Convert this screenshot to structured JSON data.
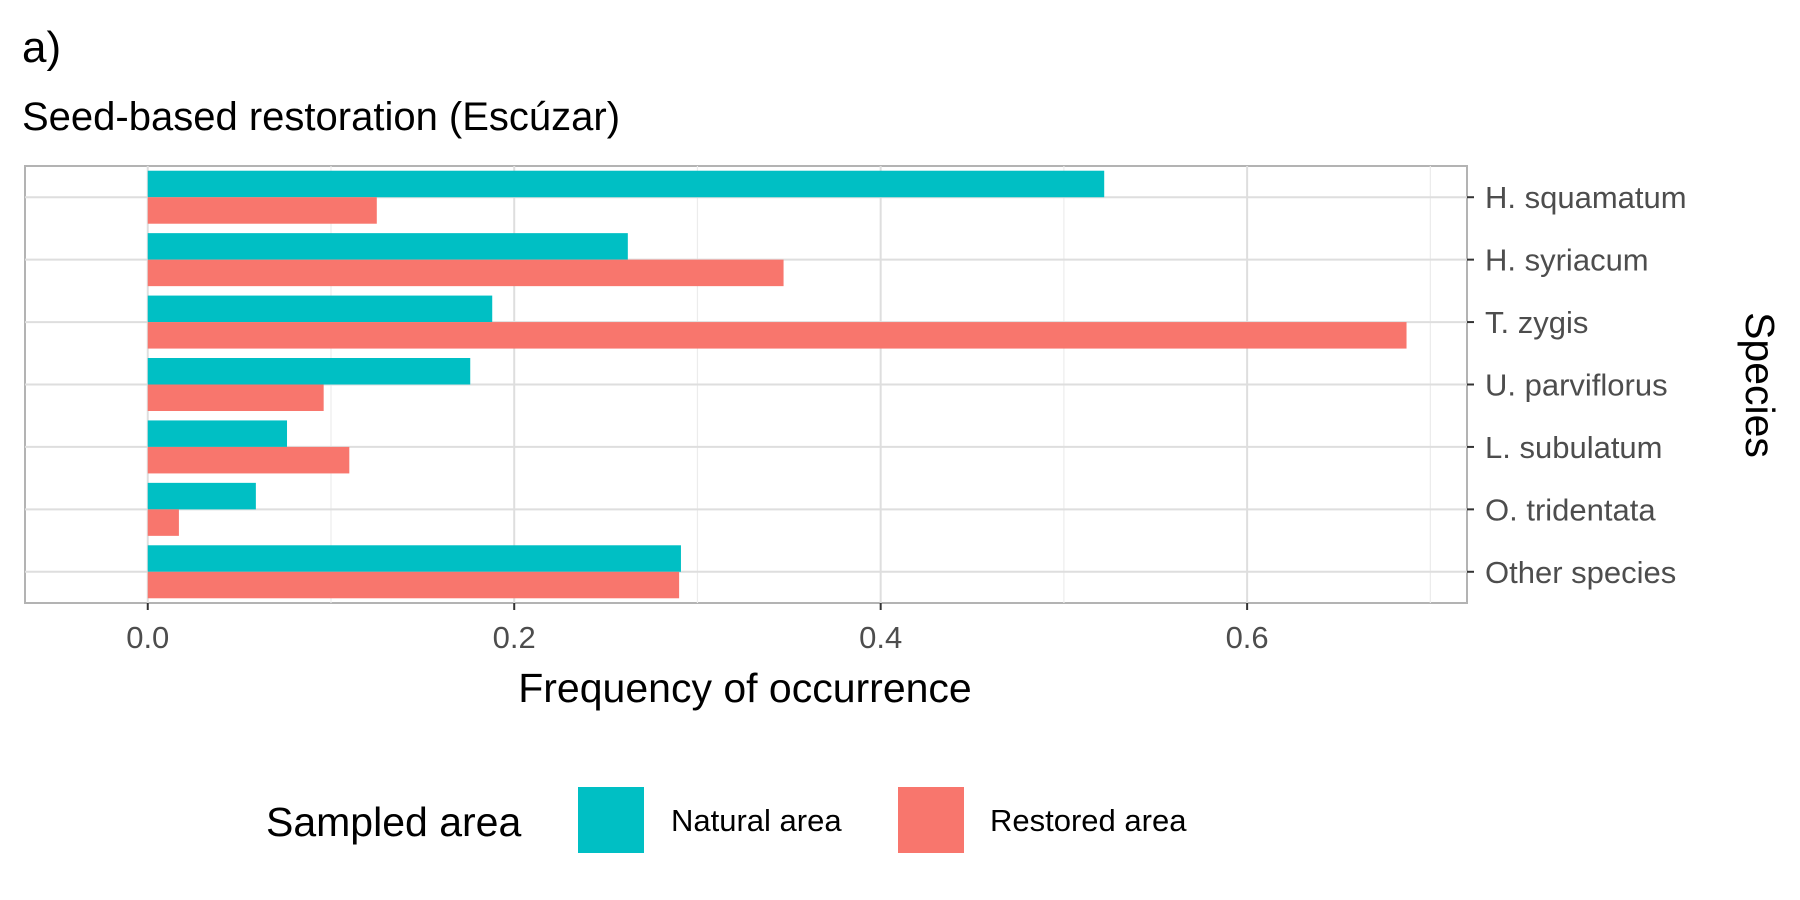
{
  "chart_data": {
    "type": "bar",
    "orientation": "horizontal",
    "tag": "a)",
    "title": "Seed-based restoration (Escúzar)",
    "xlabel": "Frequency of occurrence",
    "ylabel": "Species",
    "xlim": [
      -0.067,
      0.72
    ],
    "x_ticks": [
      0.0,
      0.2,
      0.4,
      0.6
    ],
    "x_tick_labels": [
      "0.0",
      "0.2",
      "0.4",
      "0.6"
    ],
    "categories": [
      "H. squamatum",
      "H. syriacum",
      "T. zygis",
      "U. parviflorus",
      "L. subulatum",
      "O. tridentata",
      "Other species"
    ],
    "series": [
      {
        "name": "Natural area",
        "color": "#00BFC4",
        "values": [
          0.522,
          0.262,
          0.188,
          0.176,
          0.076,
          0.059,
          0.291
        ]
      },
      {
        "name": "Restored area",
        "color": "#F8766D",
        "values": [
          0.125,
          0.347,
          0.687,
          0.096,
          0.11,
          0.017,
          0.29
        ]
      }
    ],
    "grid": true,
    "y_axis_position": "right",
    "legend": {
      "title": "Sampled area",
      "position": "bottom"
    }
  }
}
